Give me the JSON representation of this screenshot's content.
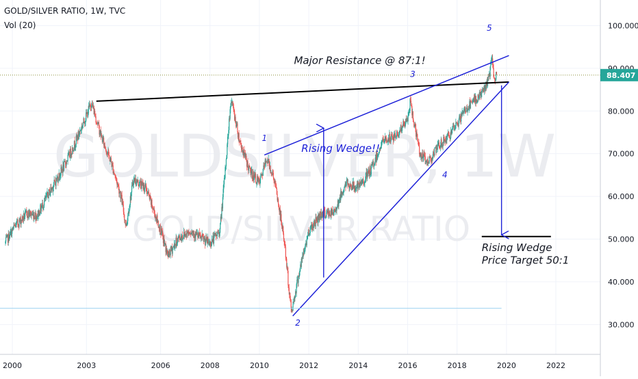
{
  "header": {
    "title": "GOLD/SILVER RATIO, 1W, TVC",
    "indicator": "Vol (20)"
  },
  "colors": {
    "up": "#26a69a",
    "down": "#ef5350",
    "annotation": "#1e22d8",
    "resistance": "#131722",
    "price_label_bg": "#26a69a",
    "grid": "#f0f3fa"
  },
  "watermark": {
    "symbol": "GOLDSILVER, 1W",
    "description": "GOLD/SILVER RATIO"
  },
  "chart_data": {
    "type": "candlestick",
    "title": "GOLD/SILVER RATIO, 1W, TVC",
    "xlim": [
      1999.5,
      2023.8
    ],
    "ylim": [
      23,
      106
    ],
    "x_ticks": [
      "2000",
      "2003",
      "2006",
      "2008",
      "2010",
      "2012",
      "2014",
      "2016",
      "2018",
      "2020",
      "2022"
    ],
    "y_ticks": [
      "30.000",
      "40.000",
      "50.000",
      "60.000",
      "70.000",
      "80.000",
      "90.000",
      "100.000"
    ],
    "last_price": "88.407",
    "price_path": [
      [
        1999.7,
        49
      ],
      [
        2000.1,
        53
      ],
      [
        2000.6,
        56
      ],
      [
        2001.0,
        55.5
      ],
      [
        2001.5,
        61
      ],
      [
        2002.0,
        66
      ],
      [
        2002.5,
        72
      ],
      [
        2003.0,
        79
      ],
      [
        2003.2,
        82
      ],
      [
        2003.6,
        74
      ],
      [
        2004.0,
        68
      ],
      [
        2004.4,
        60
      ],
      [
        2004.6,
        53
      ],
      [
        2004.9,
        64
      ],
      [
        2005.4,
        62
      ],
      [
        2006.0,
        52
      ],
      [
        2006.3,
        46
      ],
      [
        2006.7,
        50
      ],
      [
        2007.2,
        52
      ],
      [
        2007.7,
        50
      ],
      [
        2008.0,
        49
      ],
      [
        2008.4,
        52
      ],
      [
        2008.6,
        65
      ],
      [
        2008.85,
        83
      ],
      [
        2009.2,
        73
      ],
      [
        2009.6,
        66
      ],
      [
        2010.0,
        63
      ],
      [
        2010.3,
        69
      ],
      [
        2010.6,
        64
      ],
      [
        2011.0,
        50
      ],
      [
        2011.2,
        38
      ],
      [
        2011.3,
        33
      ],
      [
        2011.6,
        42
      ],
      [
        2012.0,
        52
      ],
      [
        2012.5,
        56
      ],
      [
        2013.0,
        56
      ],
      [
        2013.5,
        63
      ],
      [
        2014.0,
        62
      ],
      [
        2014.5,
        66
      ],
      [
        2015.0,
        73
      ],
      [
        2015.5,
        74
      ],
      [
        2016.0,
        78
      ],
      [
        2016.1,
        82
      ],
      [
        2016.5,
        70
      ],
      [
        2016.8,
        68
      ],
      [
        2017.3,
        72
      ],
      [
        2017.8,
        75
      ],
      [
        2018.3,
        80
      ],
      [
        2018.8,
        83
      ],
      [
        2019.1,
        85
      ],
      [
        2019.3,
        88
      ],
      [
        2019.4,
        92.5
      ],
      [
        2019.5,
        87.2
      ],
      [
        2019.6,
        88.4
      ]
    ],
    "lines": [
      {
        "name": "resistance",
        "from": [
          2003.4,
          82.3
        ],
        "to": [
          2020.1,
          86.8
        ]
      },
      {
        "name": "wedge-upper",
        "from": [
          2010.2,
          69.7
        ],
        "to": [
          2020.1,
          93
        ]
      },
      {
        "name": "wedge-lower",
        "from": [
          2011.35,
          32
        ],
        "to": [
          2020.1,
          86.8
        ]
      },
      {
        "name": "target-line",
        "from": [
          2019.0,
          50.6
        ],
        "to": [
          2021.8,
          50.6
        ]
      },
      {
        "name": "support-line",
        "from": [
          1999.5,
          33.8
        ],
        "to": [
          2019.8,
          33.8
        ]
      }
    ],
    "arrows": [
      {
        "name": "wedge-height-arrow",
        "from": [
          2012.6,
          41
        ],
        "to": [
          2012.6,
          76
        ]
      },
      {
        "name": "target-arrow",
        "from": [
          2019.8,
          86
        ],
        "to": [
          2019.8,
          51
        ]
      }
    ],
    "annotations": [
      {
        "name": "wave-label-1",
        "text": "1",
        "at": [
          2010.1,
          73
        ]
      },
      {
        "name": "wave-label-2",
        "text": "2",
        "at": [
          2011.45,
          29.7
        ]
      },
      {
        "name": "wave-label-3",
        "text": "3",
        "at": [
          2016.1,
          88
        ]
      },
      {
        "name": "wave-label-4",
        "text": "4",
        "at": [
          2017.4,
          64.4
        ]
      },
      {
        "name": "wave-label-5",
        "text": "5",
        "at": [
          2019.2,
          98.8
        ]
      },
      {
        "name": "major-resistance-label",
        "text": "Major Resistance @ 87:1!",
        "at": [
          2011.4,
          91
        ]
      },
      {
        "name": "rising-wedge-label",
        "text": "Rising Wedge!!",
        "at": [
          2011.7,
          70.4
        ]
      },
      {
        "name": "target-label-line1",
        "text": "Rising Wedge",
        "at": [
          2019.0,
          47.2
        ]
      },
      {
        "name": "target-label-line2",
        "text": "Price Target 50:1",
        "at": [
          2019.0,
          44.2
        ]
      }
    ]
  }
}
